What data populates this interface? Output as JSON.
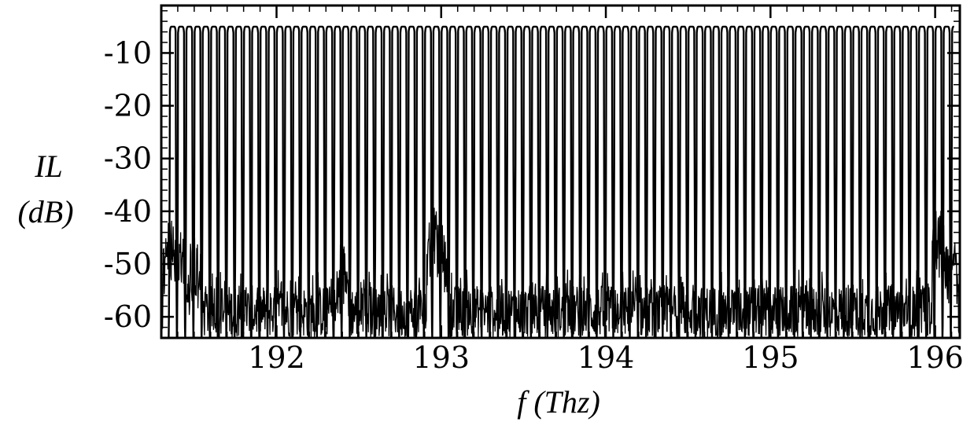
{
  "chart_data": {
    "type": "line",
    "title": "",
    "xlabel": "f (Thz)",
    "ylabel_lines": [
      "IL",
      "(dB)"
    ],
    "xlim": [
      191.3,
      196.15
    ],
    "ylim": [
      -64,
      -1
    ],
    "x_ticks": [
      192,
      193,
      194,
      195,
      196
    ],
    "x_tick_labels": [
      "192",
      "193",
      "194",
      "195",
      "196"
    ],
    "y_ticks": [
      -10,
      -20,
      -30,
      -40,
      -50,
      -60
    ],
    "y_tick_labels": [
      "-10",
      "-20",
      "-30",
      "-40",
      "-50",
      "-60"
    ],
    "x_minor_step": 0.1,
    "y_minor_step": 2,
    "grid": false,
    "legend": "none",
    "line_color": "#000000",
    "series": [
      {
        "description_role": "transmission_comb",
        "channel_spacing_thz": 0.05,
        "first_channel_thz": 191.37,
        "last_channel_thz": 196.09,
        "peak_level_db": -5,
        "floor_db": -64
      },
      {
        "description_role": "crosstalk_noise",
        "noise_floor_db": -64,
        "typical_max_db": -56,
        "peaks": [
          {
            "x": 191.35,
            "y": -40
          },
          {
            "x": 191.42,
            "y": -42
          },
          {
            "x": 191.5,
            "y": -43
          },
          {
            "x": 192.4,
            "y": -45
          },
          {
            "x": 192.95,
            "y": -37
          },
          {
            "x": 193.0,
            "y": -40
          },
          {
            "x": 194.05,
            "y": -52
          },
          {
            "x": 196.02,
            "y": -38
          },
          {
            "x": 196.1,
            "y": -42
          }
        ]
      }
    ]
  }
}
